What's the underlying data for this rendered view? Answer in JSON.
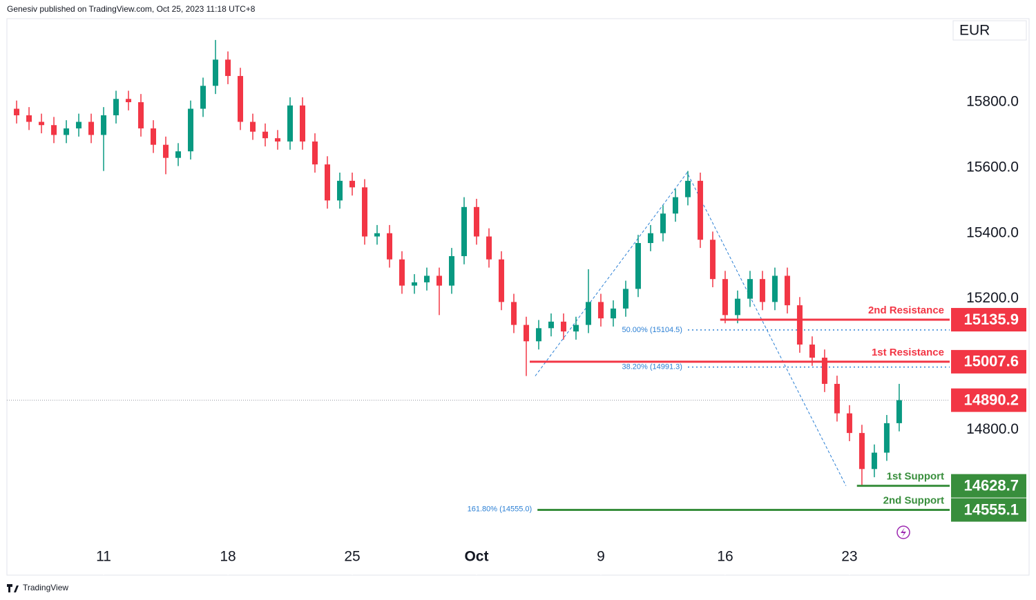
{
  "header": "Genesiv published on TradingView.com, Oct 25, 2023 11:18 UTC+8",
  "footer": "TradingView",
  "chart_data": {
    "type": "candlestick",
    "currency": "EUR",
    "x": [
      -3.5,
      -3,
      -2.5,
      -2,
      -1.5,
      -1,
      -0.5,
      0,
      0.5,
      1,
      1.5,
      2,
      2.5,
      3,
      3.5,
      4,
      4.5,
      5,
      5.5,
      6,
      6.5,
      7,
      7.5,
      8,
      8.5,
      9,
      9.5,
      10,
      10.5,
      11,
      11.5,
      12,
      12.5,
      13,
      13.5,
      14,
      14.5,
      15,
      15.5,
      16,
      16.5,
      17,
      17.5,
      18,
      18.5,
      19,
      19.5,
      20,
      20.5,
      21,
      21.5,
      22,
      22.5,
      23,
      23.5,
      24,
      24.5,
      25,
      25.5,
      26,
      26.5,
      27,
      27.5,
      28,
      28.5,
      29,
      29.5,
      30,
      30.5,
      31,
      31.5,
      32
    ],
    "open": [
      15780,
      15760,
      15740,
      15730,
      15700,
      15720,
      15740,
      15700,
      15760,
      15810,
      15800,
      15720,
      15670,
      15630,
      15650,
      15780,
      15850,
      15930,
      15880,
      15740,
      15710,
      15690,
      15680,
      15790,
      15680,
      15610,
      15500,
      15560,
      15540,
      15390,
      15400,
      15320,
      15240,
      15250,
      15270,
      15240,
      15330,
      15480,
      15390,
      15320,
      15190,
      15120,
      15070,
      15110,
      15130,
      15100,
      15120,
      15190,
      15140,
      15170,
      15230,
      15370,
      15400,
      15460,
      15510,
      15560,
      15380,
      15260,
      15150,
      15200,
      15260,
      15190,
      15270,
      15180,
      15060,
      15020,
      14940,
      14850,
      14790,
      14680,
      14730,
      14820
    ],
    "high": [
      15805,
      15785,
      15765,
      15755,
      15745,
      15765,
      15765,
      15785,
      15835,
      15835,
      15825,
      15745,
      15695,
      15675,
      15805,
      15875,
      15990,
      15955,
      15905,
      15765,
      15735,
      15715,
      15815,
      15815,
      15705,
      15635,
      15585,
      15585,
      15565,
      15425,
      15425,
      15345,
      15275,
      15295,
      15295,
      15355,
      15510,
      15505,
      15415,
      15345,
      15215,
      15145,
      15135,
      15155,
      15155,
      15145,
      15290,
      15215,
      15195,
      15255,
      15395,
      15425,
      15485,
      15535,
      15590,
      15585,
      15405,
      15285,
      15225,
      15285,
      15285,
      15295,
      15295,
      15205,
      15085,
      15045,
      14965,
      14875,
      14815,
      14755,
      14845,
      14940
    ],
    "low": [
      15735,
      15715,
      15705,
      15675,
      15675,
      15695,
      15675,
      15590,
      15735,
      15775,
      15695,
      15645,
      15580,
      15605,
      15625,
      15755,
      15825,
      15855,
      15715,
      15685,
      15665,
      15655,
      15655,
      15655,
      15585,
      15475,
      15475,
      15515,
      15365,
      15365,
      15295,
      15215,
      15215,
      15225,
      15150,
      15215,
      15305,
      15365,
      15295,
      15165,
      15095,
      14964,
      15045,
      15085,
      15075,
      15075,
      15095,
      15115,
      15115,
      15145,
      15205,
      15345,
      15375,
      15435,
      15485,
      15355,
      15235,
      15125,
      15125,
      15175,
      15165,
      15165,
      15155,
      15035,
      14995,
      14915,
      14825,
      14765,
      14628.7,
      14655,
      14705,
      14795
    ],
    "close": [
      15760,
      15740,
      15730,
      15700,
      15720,
      15740,
      15700,
      15760,
      15810,
      15800,
      15720,
      15670,
      15630,
      15650,
      15780,
      15850,
      15930,
      15880,
      15740,
      15710,
      15690,
      15680,
      15790,
      15680,
      15610,
      15500,
      15560,
      15540,
      15390,
      15400,
      15320,
      15240,
      15250,
      15270,
      15240,
      15330,
      15480,
      15390,
      15320,
      15190,
      15120,
      15070,
      15110,
      15130,
      15100,
      15120,
      15190,
      15140,
      15170,
      15230,
      15370,
      15400,
      15460,
      15510,
      15560,
      15380,
      15260,
      15150,
      15200,
      15260,
      15190,
      15270,
      15180,
      15060,
      15020,
      14940,
      14850,
      14790,
      14680,
      14730,
      14820,
      14890.2
    ],
    "up_color": "#089981",
    "down_color": "#f23645",
    "xlim": [
      -3.89,
      34.03
    ],
    "xticks": [
      {
        "value": 0,
        "label": "11"
      },
      {
        "value": 5,
        "label": "18"
      },
      {
        "value": 10,
        "label": "25"
      },
      {
        "value": 15,
        "label": "Oct"
      },
      {
        "value": 20,
        "label": "9"
      },
      {
        "value": 25,
        "label": "16"
      },
      {
        "value": 30,
        "label": "23"
      }
    ],
    "ylim": [
      14356,
      16053
    ],
    "yticks": [
      {
        "value": 14800,
        "label": "14800.0"
      },
      {
        "value": 15200,
        "label": "15200.0"
      },
      {
        "value": 15400,
        "label": "15400.0"
      },
      {
        "value": 15600,
        "label": "15600.0"
      },
      {
        "value": 15800,
        "label": "15800.0"
      }
    ],
    "levels": [
      {
        "name": "2nd Resistance",
        "value": 15135.9,
        "color": "#f23645",
        "x_start": 24.8
      },
      {
        "name": "1st Resistance",
        "value": 15007.6,
        "color": "#f23645",
        "x_start": 17.14
      },
      {
        "name": "1st Support",
        "value": 14628.7,
        "color": "#388e3c",
        "x_start": 30.3
      },
      {
        "name": "2nd Support",
        "value": 14555.1,
        "color": "#388e3c",
        "x_start": 17.45
      }
    ],
    "last_price": 14890.2,
    "last_color": "#f23645",
    "fib_levels": [
      {
        "value": 15104.5,
        "label": "50.00% (15104.5)",
        "x_start": 23.5
      },
      {
        "value": 14991.3,
        "label": "38.20% (14991.3)",
        "x_start": 23.5
      },
      {
        "value": 14555.0,
        "label": "161.80% (14555.0)",
        "x_start": 17.45
      }
    ],
    "zigzag": {
      "x": [
        17.36,
        23.47,
        29.86
      ],
      "y": [
        14964,
        15585,
        14628.7
      ],
      "color": "#2a7fd4"
    }
  }
}
